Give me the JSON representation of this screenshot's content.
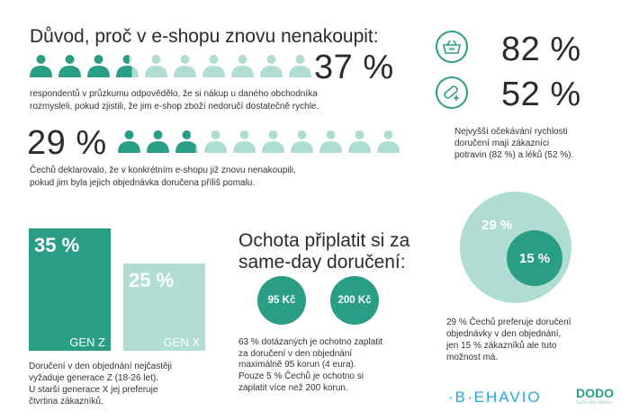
{
  "colors": {
    "dark": "#2a9d85",
    "light": "#b0dcd3",
    "behavio": "#2aa7d9",
    "dodo": "#2a9d85"
  },
  "section1": {
    "title": "Důvod, proč v e-shopu znovu nenakoupit:",
    "stat1": {
      "value": "37 %",
      "percent": 37,
      "icon": "person-icon",
      "text_line1": "respondentů v průzkumu odpovědělo, že si nákup u daného obchodníka",
      "text_line2": "rozmysleli, pokud zjistili, že jim e-shop zboží nedoručí dostatečně rychle."
    },
    "stat2": {
      "value": "29 %",
      "percent": 29,
      "icon": "person-icon",
      "text_line1": "Čechů  deklarovalo, že v konkrétním e-shopu již znovu nenakoupili,",
      "text_line2": "pokud jim byla jejich objednávka doručena příliš pomalu."
    }
  },
  "expectations": {
    "food": {
      "icon": "basket-icon",
      "value": "82 %"
    },
    "medicine": {
      "icon": "pill-icon",
      "value": "52 %"
    },
    "text_line1": "Nejvyšší očekávání rychlosti",
    "text_line2": "doručení mají zákazníci",
    "text_line3": "potravin (82 %) a léků (52 %)."
  },
  "generations": {
    "bars": [
      {
        "value": "35 %",
        "percent": 35,
        "label": "GEN Z"
      },
      {
        "value": "25 %",
        "percent": 25,
        "label": "GEN X"
      }
    ],
    "text_line1": "Doručení v den objednání nejčastěji",
    "text_line2": "vyžaduje generace Z (18-26 let).",
    "text_line3": "U starší generace X jej preferuje",
    "text_line4": "čtvrtina zákazníků."
  },
  "willingness": {
    "title_line1": "Ochota připlatit si za",
    "title_line2": "same-day doručení:",
    "prices": [
      "95 Kč",
      "200 Kč"
    ],
    "text_line1": "63 % dotázaných je ochotno zaplatit",
    "text_line2": "za doručení v den objednání",
    "text_line3": "maximálně 95 korun (4 eura).",
    "text_line4": "Pouze 5 % Čechů je ochotno si",
    "text_line5": "zaplatit více než 200 korun."
  },
  "preference": {
    "outer": {
      "value": "29 %",
      "percent": 29
    },
    "inner": {
      "value": "15 %",
      "percent": 15
    },
    "text_line1": "29 % Čechů preferuje doručení",
    "text_line2": "objednávky v den objednání,",
    "text_line3": "jen 15 % zákazníků ale tuto",
    "text_line4": "možnost má."
  },
  "logos": {
    "behavio": "·B·EHAVIO",
    "dodo": "DODO",
    "dodo_tagline": "Same day delivery"
  }
}
